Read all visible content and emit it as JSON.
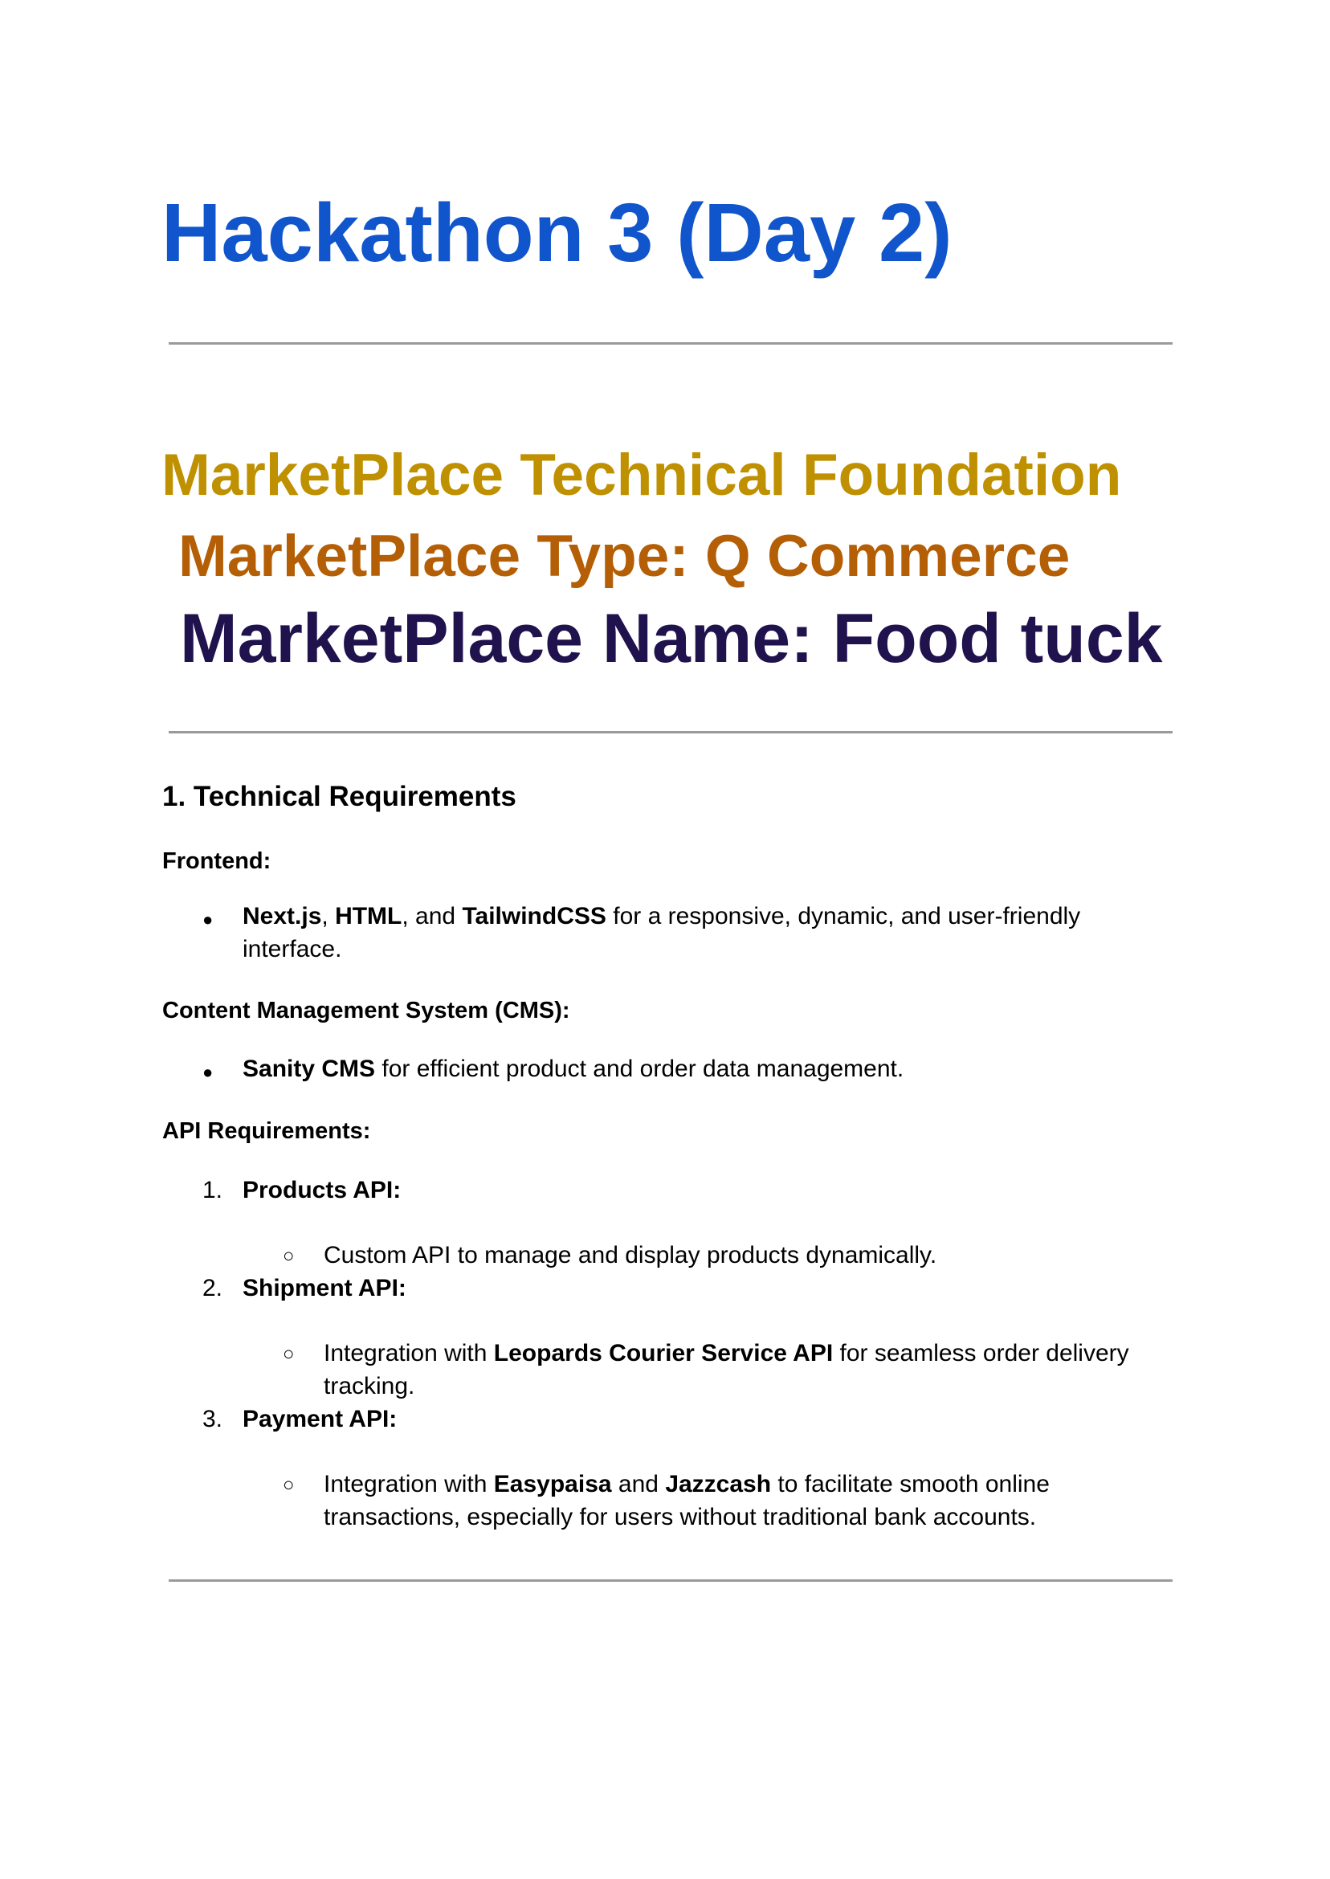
{
  "title": "Hackathon 3 (Day 2)",
  "headings": {
    "foundation": "MarketPlace Technical Foundation",
    "type": "MarketPlace Type: Q Commerce",
    "name": "MarketPlace Name: Food tuck"
  },
  "section1": {
    "heading": "1. Technical Requirements",
    "frontend": {
      "label": "Frontend:",
      "bullet": {
        "b1": "Next.js",
        "t1": ", ",
        "b2": "HTML",
        "t2": ", and ",
        "b3": "TailwindCSS",
        "t3": " for a responsive, dynamic, and user-friendly interface."
      }
    },
    "cms": {
      "label": "Content Management System (CMS):",
      "bullet": {
        "b1": "Sanity CMS",
        "t1": " for efficient product and order data management."
      }
    },
    "api": {
      "label": "API Requirements:",
      "items": [
        {
          "num": "1.",
          "label": "Products API:",
          "sub": {
            "t0": "Custom API to manage and display products dynamically."
          }
        },
        {
          "num": "2.",
          "label": "Shipment API:",
          "sub": {
            "t0": "Integration with ",
            "b1": "Leopards Courier Service API",
            "t1": " for seamless order delivery tracking."
          }
        },
        {
          "num": "3.",
          "label": "Payment API:",
          "sub": {
            "t0": "Integration with ",
            "b1": "Easypaisa",
            "t1": " and ",
            "b2": "Jazzcash",
            "t2": " to facilitate smooth online transactions, especially for users without traditional bank accounts."
          }
        }
      ]
    }
  },
  "markers": {
    "bullet": "●",
    "sub_bullet": "○"
  },
  "colors": {
    "title": "#1155cc",
    "foundation": "#bf9000",
    "type": "#b45f06",
    "name": "#20124d",
    "rule": "#9a9a9a"
  }
}
